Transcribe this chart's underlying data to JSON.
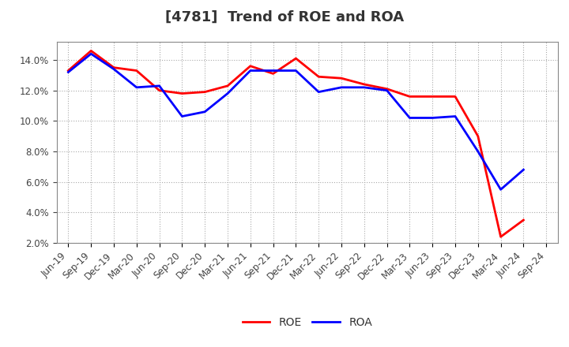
{
  "title": "[4781]  Trend of ROE and ROA",
  "labels": [
    "Jun-19",
    "Sep-19",
    "Dec-19",
    "Mar-20",
    "Jun-20",
    "Sep-20",
    "Dec-20",
    "Mar-21",
    "Jun-21",
    "Sep-21",
    "Dec-21",
    "Mar-22",
    "Jun-22",
    "Sep-22",
    "Dec-22",
    "Mar-23",
    "Jun-23",
    "Sep-23",
    "Dec-23",
    "Mar-24",
    "Jun-24",
    "Sep-24"
  ],
  "ROE": [
    13.3,
    14.6,
    13.5,
    13.3,
    12.0,
    11.8,
    11.9,
    12.3,
    13.6,
    13.1,
    14.1,
    12.9,
    12.8,
    12.4,
    12.1,
    11.6,
    11.6,
    11.6,
    9.0,
    2.4,
    3.5,
    null
  ],
  "ROA": [
    13.2,
    14.4,
    13.4,
    12.2,
    12.3,
    10.3,
    10.6,
    11.8,
    13.3,
    13.3,
    13.3,
    11.9,
    12.2,
    12.2,
    12.0,
    10.2,
    10.2,
    10.3,
    8.0,
    5.5,
    6.8,
    null
  ],
  "roe_color": "#ff0000",
  "roa_color": "#0000ff",
  "ylim": [
    2.0,
    15.2
  ],
  "yticks": [
    2.0,
    4.0,
    6.0,
    8.0,
    10.0,
    12.0,
    14.0
  ],
  "grid_color": "#aaaaaa",
  "background_color": "#ffffff",
  "title_fontsize": 13,
  "title_color": "#333333",
  "legend_fontsize": 10,
  "tick_fontsize": 8.5,
  "linewidth": 2.0
}
